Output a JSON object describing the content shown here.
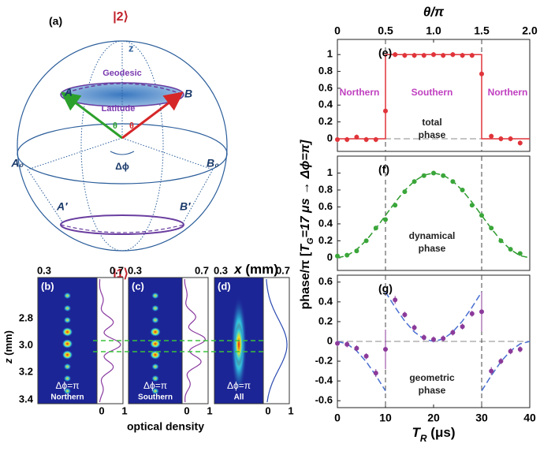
{
  "figure": {
    "sphere": {
      "panel_label": "(a)",
      "top_state": "|2⟩",
      "bottom_state": "|1⟩",
      "z": "z",
      "geodesic": "Geodesic",
      "latitude": "Latitude",
      "A": "A",
      "B": "B",
      "theta_left": "θ",
      "theta_right": "θ",
      "delta_phi": "Δϕ",
      "A0": "A₀",
      "B0": "B₀",
      "A_prime": "A′",
      "B_prime": "B′"
    },
    "images": {
      "x_label": [
        "x",
        " (mm)"
      ],
      "z_label": [
        "z",
        " (mm)"
      ],
      "z_ticks": [
        "2.8",
        "3.0",
        "3.2",
        "3.4"
      ],
      "od_label": "optical density",
      "panels": [
        {
          "label": "(b)",
          "x_ticks": [
            "0.3",
            "0.7"
          ],
          "phase": "Δϕ=π",
          "name": "Northern",
          "od_ticks": [
            "0",
            "1"
          ]
        },
        {
          "label": "(c)",
          "x_ticks": [
            "0.3",
            "0.7"
          ],
          "phase": "Δϕ=π",
          "name": "Southern",
          "od_ticks": [
            "0",
            "1"
          ]
        },
        {
          "label": "(d)",
          "x_ticks": [
            "0.3",
            "0.7"
          ],
          "phase": "Δϕ=π",
          "name": "All",
          "od_ticks": [
            "0",
            "1"
          ]
        }
      ]
    },
    "y_label": [
      "phase/π  [",
      "T",
      "G",
      "=17 μs → Δϕ=π]"
    ],
    "x_label": [
      "T",
      "R",
      " (μs)"
    ]
  },
  "chart_data": [
    {
      "type": "scatter",
      "panel_label": "(e)",
      "xlim": [
        0,
        40
      ],
      "ylim": [
        -0.15,
        1.18
      ],
      "yticks": [
        0,
        0.2,
        0.4,
        0.6,
        0.8,
        1
      ],
      "x2_label": "θ/π",
      "x2lim": [
        0,
        2
      ],
      "x2ticks": [
        0,
        0.5,
        {
          "value": 1,
          "label": "1.0"
        },
        1.5,
        {
          "value": 2,
          "label": "2.0"
        }
      ],
      "reference_x": [
        10,
        30
      ],
      "reference_y": [
        0
      ],
      "annotations": [
        "Northern",
        "Southern",
        "Northern",
        "total",
        "phase"
      ],
      "x": [
        0,
        2,
        4,
        6,
        8,
        10,
        12,
        14,
        16,
        18,
        20,
        22,
        24,
        26,
        28,
        30,
        32,
        34,
        36,
        38
      ],
      "values": [
        -0.01,
        -0.01,
        0.02,
        -0.01,
        -0.01,
        0.33,
        1.0,
        0.99,
        0.99,
        0.99,
        1.0,
        0.99,
        1.0,
        0.99,
        0.99,
        0.77,
        0.03,
        0.0,
        0.0,
        -0.05
      ],
      "errors": [
        0.03,
        0.03,
        0.03,
        0.03,
        0.03,
        0.1,
        0.03,
        0.03,
        0.03,
        0.03,
        0.03,
        0.03,
        0.03,
        0.03,
        0.03,
        0.1,
        0.03,
        0.03,
        0.03,
        0.03
      ],
      "color": "#e0343a",
      "fit": {
        "x": [
          0,
          10,
          10,
          30,
          30,
          40
        ],
        "values": [
          0,
          0,
          1,
          1,
          0,
          0
        ],
        "color": "#e0343a",
        "dashed": false
      }
    },
    {
      "type": "scatter",
      "panel_label": "(f)",
      "xlim": [
        0,
        40
      ],
      "ylim": [
        -0.15,
        1.2
      ],
      "yticks": [
        0,
        0.2,
        0.4,
        0.6,
        0.8,
        1
      ],
      "reference_x": [
        10,
        30
      ],
      "reference_y": [],
      "annotations": [
        "dynamical",
        "phase"
      ],
      "x": [
        0,
        2,
        4,
        6,
        8,
        10,
        12,
        14,
        16,
        18,
        20,
        22,
        24,
        26,
        28,
        30,
        32,
        34,
        36,
        38
      ],
      "values": [
        0.02,
        0.03,
        0.08,
        0.2,
        0.35,
        0.45,
        0.62,
        0.78,
        0.9,
        0.97,
        1.0,
        0.97,
        0.9,
        0.8,
        0.62,
        0.5,
        0.35,
        0.2,
        0.1,
        0.05
      ],
      "errors": [
        0.02,
        0.02,
        0.02,
        0.02,
        0.02,
        0.02,
        0.02,
        0.02,
        0.02,
        0.02,
        0.02,
        0.02,
        0.02,
        0.02,
        0.02,
        0.02,
        0.02,
        0.02,
        0.02,
        0.02
      ],
      "color": "#3aa63a",
      "fit": {
        "x": [
          0,
          2,
          4,
          6,
          8,
          10,
          12,
          14,
          16,
          18,
          20,
          22,
          24,
          26,
          28,
          30,
          32,
          34,
          36,
          38,
          40
        ],
        "values": [
          0,
          0.0245,
          0.0955,
          0.2061,
          0.3455,
          0.5,
          0.6545,
          0.7939,
          0.9045,
          0.9755,
          1,
          0.9755,
          0.9045,
          0.7939,
          0.6545,
          0.5,
          0.3455,
          0.2061,
          0.0955,
          0.0245,
          0
        ],
        "color": "#2f9a2f",
        "dashed": true
      }
    },
    {
      "type": "scatter",
      "panel_label": "(g)",
      "xlim": [
        0,
        40
      ],
      "ylim": [
        -0.67,
        0.67
      ],
      "yticks": [
        -0.6,
        -0.4,
        -0.2,
        0,
        0.2,
        0.4,
        0.6
      ],
      "xticks": [
        0,
        10,
        20,
        30,
        40
      ],
      "reference_x": [
        10,
        30
      ],
      "reference_y": [
        0
      ],
      "annotations": [
        "geometric",
        "phase"
      ],
      "x": [
        0,
        2,
        4,
        6,
        8,
        10,
        12,
        14,
        16,
        18,
        20,
        22,
        24,
        26,
        28,
        30,
        32,
        34,
        36,
        38
      ],
      "values": [
        -0.02,
        -0.03,
        -0.07,
        -0.15,
        -0.32,
        -0.08,
        0.42,
        0.27,
        0.14,
        0.04,
        0.02,
        0.03,
        0.09,
        0.15,
        0.28,
        0.3,
        -0.3,
        -0.2,
        -0.1,
        -0.08
      ],
      "errors": [
        0.03,
        0.03,
        0.03,
        0.03,
        0.04,
        0.2,
        0.04,
        0.03,
        0.03,
        0.03,
        0.03,
        0.03,
        0.03,
        0.03,
        0.03,
        0.2,
        0.04,
        0.03,
        0.03,
        0.03
      ],
      "color": "#8b3a9a",
      "fit": {
        "x": [
          0,
          2,
          4,
          6,
          8,
          10,
          10,
          10,
          12,
          14,
          16,
          18,
          20,
          22,
          24,
          26,
          28,
          30,
          30,
          30,
          32,
          34,
          36,
          38,
          40
        ],
        "values": [
          0,
          -0.0245,
          -0.0955,
          -0.2061,
          -0.3455,
          -0.5,
          null,
          0.5,
          0.3455,
          0.2061,
          0.0955,
          0.0245,
          0,
          0.0245,
          0.0955,
          0.2061,
          0.3455,
          0.5,
          null,
          -0.5,
          -0.3455,
          -0.2061,
          -0.0955,
          -0.0245,
          0
        ],
        "color": "#4a6fd0",
        "dashed": true
      }
    }
  ]
}
